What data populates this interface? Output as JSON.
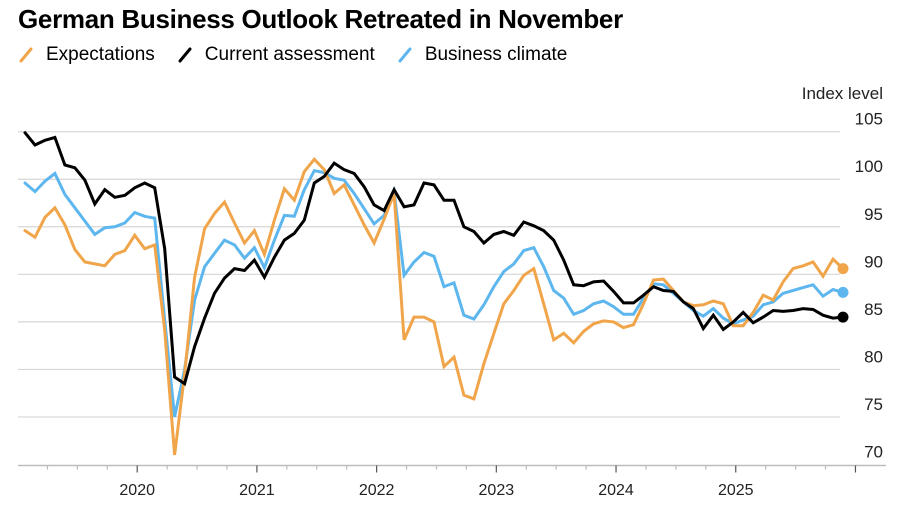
{
  "chart_data": {
    "type": "line",
    "title": "German Business Outlook Retreated in November",
    "xlabel": "",
    "ylabel": "Index level",
    "ylim": [
      70,
      105
    ],
    "yticks": [
      105,
      100,
      95,
      90,
      85,
      80,
      75,
      70
    ],
    "xticks": [
      "2020",
      "2021",
      "2022",
      "2023",
      "2024",
      "2025"
    ],
    "x_start": "2019-01",
    "x_end": "2025-11",
    "frequency": "monthly",
    "grid": true,
    "legend_position": "top-left",
    "end_markers": true,
    "series": [
      {
        "name": "Expectations",
        "color": "#F0A54A",
        "values": [
          94.6,
          93.9,
          96.0,
          97.0,
          95.2,
          92.6,
          91.3,
          91.1,
          90.9,
          92.1,
          92.5,
          94.1,
          92.7,
          93.1,
          84.1,
          71.0,
          79.5,
          89.7,
          94.8,
          96.4,
          97.6,
          95.4,
          93.3,
          94.6,
          92.1,
          95.7,
          99.0,
          97.8,
          100.8,
          102.1,
          101.0,
          98.5,
          99.4,
          97.3,
          95.2,
          93.3,
          95.8,
          98.5,
          83.1,
          85.5,
          85.5,
          85.0,
          80.3,
          81.3,
          77.3,
          76.9,
          80.6,
          83.8,
          86.9,
          88.3,
          89.9,
          90.6,
          86.9,
          83.1,
          83.8,
          82.8,
          84.0,
          84.8,
          85.1,
          85.0,
          84.4,
          84.7,
          86.9,
          89.4,
          89.5,
          88.3,
          87.1,
          86.7,
          86.8,
          87.2,
          86.9,
          84.6,
          84.6,
          86.0,
          87.8,
          87.3,
          89.2,
          90.6,
          90.9,
          91.3,
          89.8,
          91.6,
          90.6
        ]
      },
      {
        "name": "Current assessment",
        "color": "#000000",
        "values": [
          104.9,
          103.6,
          104.1,
          104.4,
          101.5,
          101.2,
          99.9,
          97.4,
          98.9,
          98.1,
          98.3,
          99.1,
          99.6,
          99.1,
          92.7,
          79.2,
          78.5,
          82.4,
          85.4,
          88.0,
          89.6,
          90.6,
          90.4,
          91.5,
          89.7,
          91.8,
          93.6,
          94.3,
          95.7,
          99.6,
          100.3,
          101.7,
          101.0,
          100.6,
          99.2,
          97.3,
          96.7,
          98.9,
          97.1,
          97.3,
          99.6,
          99.4,
          97.8,
          97.8,
          95.0,
          94.5,
          93.3,
          94.2,
          94.5,
          94.1,
          95.5,
          95.1,
          94.6,
          93.6,
          91.5,
          88.9,
          88.8,
          89.2,
          89.3,
          88.2,
          87.0,
          87.0,
          87.8,
          88.7,
          88.3,
          88.2,
          87.1,
          86.4,
          84.3,
          85.7,
          84.2,
          85.0,
          86.0,
          84.9,
          85.5,
          86.2,
          86.1,
          86.2,
          86.4,
          86.3,
          85.7,
          85.4,
          85.5
        ]
      },
      {
        "name": "Business climate",
        "color": "#5DB7EE",
        "values": [
          99.6,
          98.7,
          99.8,
          100.6,
          98.4,
          97.0,
          95.6,
          94.2,
          94.9,
          95.0,
          95.4,
          96.5,
          96.1,
          95.9,
          85.2,
          75.0,
          80.0,
          87.3,
          90.8,
          92.2,
          93.6,
          93.1,
          91.7,
          92.8,
          90.7,
          93.6,
          96.2,
          96.1,
          98.9,
          100.9,
          100.7,
          100.1,
          99.9,
          98.5,
          96.9,
          95.3,
          96.2,
          98.7,
          89.9,
          91.3,
          92.3,
          91.9,
          88.7,
          89.1,
          85.7,
          85.3,
          86.8,
          88.7,
          90.3,
          91.1,
          92.5,
          92.8,
          90.8,
          88.3,
          87.5,
          85.8,
          86.2,
          86.9,
          87.2,
          86.6,
          85.8,
          85.8,
          87.5,
          89.0,
          88.9,
          88.0,
          87.1,
          86.2,
          85.6,
          86.4,
          85.4,
          84.8,
          85.2,
          85.6,
          86.8,
          87.1,
          88.0,
          88.3,
          88.6,
          88.9,
          87.7,
          88.4,
          88.1
        ]
      }
    ]
  }
}
